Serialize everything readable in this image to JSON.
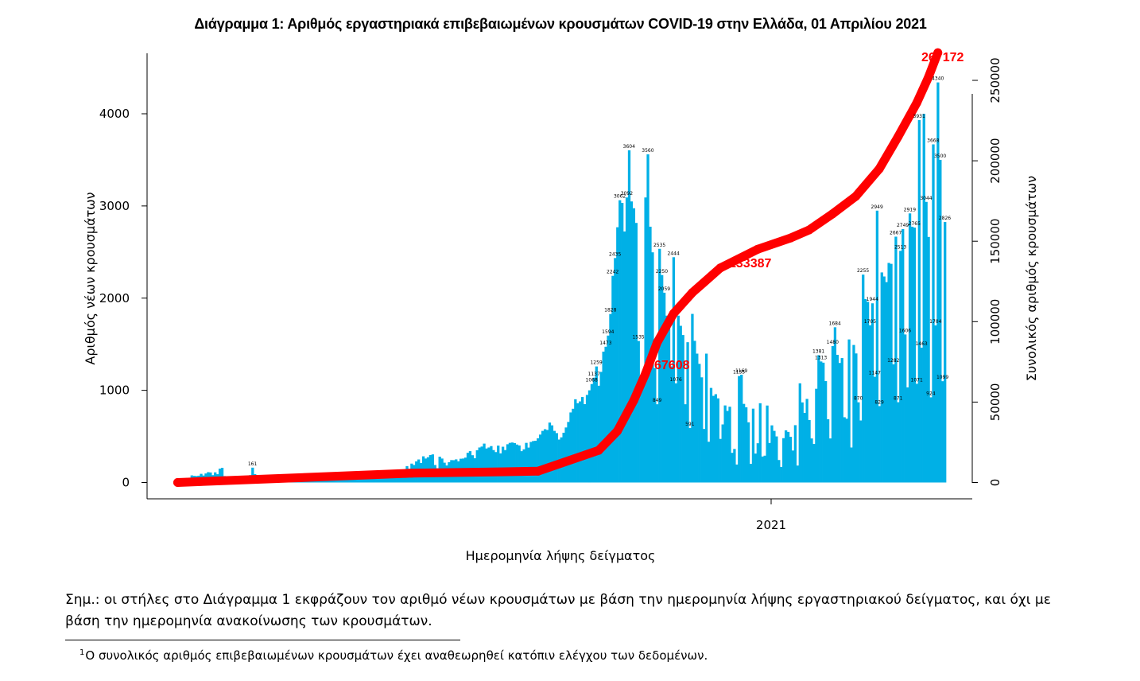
{
  "chart_data": {
    "type": "bar",
    "title": "Διάγραμμα 1: Αριθμός εργαστηριακά επιβεβαιωμένων κρουσμάτων COVID-19 στην Ελλάδα, 01 Απριλίου 2021",
    "xlabel": "Ημερομηνία λήψης δείγματος",
    "ylabel": "Αριθμός νέων κρουσμάτων",
    "ylabel_right": "Συνολικός αριθμός κρουσμάτων",
    "x_tick_labels": [
      "2021"
    ],
    "ylim": [
      0,
      4000
    ],
    "y_ticks": [
      0,
      1000,
      2000,
      3000,
      4000
    ],
    "y2lim": [
      0,
      250000
    ],
    "y2_ticks": [
      0,
      50000,
      100000,
      150000,
      200000,
      250000
    ],
    "grid": false,
    "bar_color": "#00b0e6",
    "line_color": "#ff0000",
    "series": [
      {
        "name": "Αριθμός νέων κρουσμάτων",
        "kind": "bar",
        "values": [
          20,
          20,
          20,
          30,
          49,
          26,
          77,
          73,
          70,
          74,
          94,
          76,
          98,
          112,
          109,
          80,
          110,
          90,
          150,
          159,
          70,
          65,
          55,
          62,
          40,
          45,
          50,
          52,
          55,
          60,
          58,
          80,
          161,
          90,
          62,
          56,
          45,
          52,
          49,
          45,
          48,
          52,
          40,
          38,
          30,
          42,
          45,
          45,
          55,
          50,
          35,
          40,
          32,
          45,
          38,
          36,
          41,
          45,
          42,
          47,
          50,
          52,
          55,
          50,
          56,
          60,
          58,
          52,
          53,
          56,
          60,
          48,
          56,
          58,
          72,
          58,
          62,
          49,
          45,
          60,
          52,
          55,
          64,
          70,
          63,
          65,
          58,
          70,
          60,
          72,
          80,
          85,
          90,
          100,
          128,
          125,
          122,
          120,
          178,
          150,
          205,
          190,
          229,
          250,
          212,
          284,
          260,
          274,
          298,
          305,
          190,
          155,
          280,
          260,
          215,
          185,
          220,
          243,
          242,
          251,
          230,
          258,
          260,
          270,
          322,
          340,
          296,
          263,
          350,
          380,
          390,
          422,
          369,
          380,
          395,
          352,
          330,
          400,
          316,
          388,
          352,
          415,
          430,
          434,
          428,
          412,
          402,
          340,
          360,
          430,
          379,
          440,
          450,
          453,
          480,
          520,
          560,
          578,
          570,
          650,
          620,
          560,
          536,
          466,
          490,
          540,
          597,
          657,
          760,
          800,
          903,
          860,
          880,
          927,
          850,
          950,
          1000,
          1068,
          1137,
          1259,
          1050,
          1200,
          1420,
          1473,
          1594,
          1828,
          2242,
          2435,
          2769,
          3062,
          3033,
          2723,
          3092,
          3604,
          3049,
          2975,
          2816,
          1535,
          1046,
          1045,
          3092,
          3560,
          2775,
          2497,
          1241,
          849,
          2535,
          2250,
          2059,
          1810,
          1760,
          1260,
          2444,
          1076,
          1810,
          1700,
          1600,
          849,
          1522,
          591,
          1829,
          1537,
          1398,
          1287,
          1141,
          581,
          1398,
          442,
          1026,
          940,
          958,
          913,
          473,
          630,
          836,
          777,
          822,
          322,
          364,
          195,
          1155,
          1169,
          853,
          816,
          653,
          202,
          801,
          314,
          426,
          860,
          282,
          291,
          835,
          429,
          620,
          560,
          500,
          244,
          169,
          481,
          566,
          549,
          496,
          347,
          622,
          184,
          1076,
          869,
          755,
          907,
          678,
          478,
          418,
          1017,
          1381,
          1313,
          1300,
          1100,
          686,
          478,
          1480,
          1684,
          1385,
          1297,
          1350,
          708,
          692,
          1552,
          380,
          1492,
          1400,
          870,
          673,
          2255,
          1990,
          1960,
          1705,
          1944,
          1147,
          2949,
          829,
          2279,
          2235,
          2174,
          2382,
          2372,
          1282,
          2667,
          871,
          2513,
          2749,
          1606,
          1032,
          2919,
          2775,
          2765,
          1071,
          3931,
          1463,
          4000,
          3044,
          2664,
          924,
          3668,
          1704,
          4340,
          3500,
          1099,
          2826
        ]
      },
      {
        "name": "Συνολικός αριθμός κρουσμάτων",
        "kind": "line",
        "points": [
          [
            0,
            0
          ],
          [
            100,
            5800
          ],
          [
            154,
            7000
          ],
          [
            180,
            20000
          ],
          [
            188,
            32000
          ],
          [
            195,
            51000
          ],
          [
            200,
            67608
          ],
          [
            205,
            87000
          ],
          [
            212,
            105000
          ],
          [
            220,
            118000
          ],
          [
            232,
            133387
          ],
          [
            248,
            145000
          ],
          [
            262,
            152000
          ],
          [
            270,
            157000
          ],
          [
            280,
            167000
          ],
          [
            290,
            178000
          ],
          [
            300,
            195000
          ],
          [
            308,
            215000
          ],
          [
            316,
            236000
          ],
          [
            321,
            252000
          ],
          [
            325,
            267172
          ]
        ]
      }
    ],
    "bar_data_labels": [
      "161",
      "1473",
      "1828",
      "2242",
      "2435",
      "3062",
      "3604",
      "3560",
      "3092",
      "2535",
      "2444",
      "2250",
      "2059",
      "1594",
      "1535",
      "1259",
      "1137",
      "1068",
      "849",
      "591",
      "1155",
      "1169",
      "1109",
      "1076",
      "1381",
      "1313",
      "1684",
      "1480",
      "2255",
      "2949",
      "3931",
      "4340",
      "3668",
      "3500",
      "3044",
      "2826",
      "2919",
      "2765",
      "2749",
      "2667",
      "2513",
      "1705",
      "1944",
      "1606",
      "1463",
      "1282",
      "1147",
      "1099",
      "1071",
      "924",
      "871",
      "829",
      "870",
      "1704"
    ],
    "annotations": [
      "67608",
      "133387",
      "267172"
    ]
  },
  "note": "Σημ.: οι στήλες στο Διάγραμμα 1 εκφράζουν τον αριθμό νέων κρουσμάτων με βάση την ημερομηνία λήψης εργαστηριακού δείγματος, και όχι με βάση την ημερομηνία ανακοίνωσης των κρουσμάτων.",
  "footnote": {
    "marker": "1",
    "text": "Ο συνολικός αριθμός επιβεβαιωμένων κρουσμάτων έχει αναθεωρηθεί κατόπιν ελέγχου των δεδομένων."
  }
}
